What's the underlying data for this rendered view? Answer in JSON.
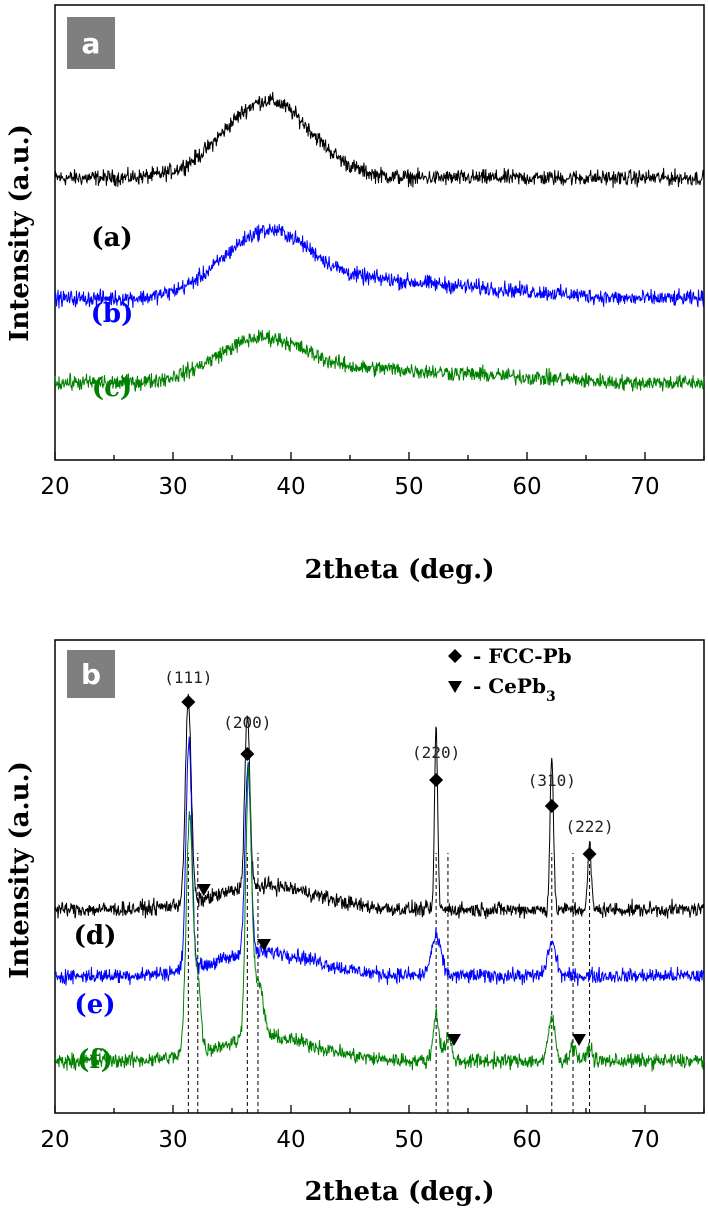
{
  "chart_data": [
    {
      "panel": "a",
      "type": "line",
      "xlabel": "2theta (deg.)",
      "ylabel": "Intensity (a.u.)",
      "xlim": [
        20,
        75
      ],
      "xticks": [
        20,
        30,
        40,
        50,
        60,
        70
      ],
      "series": [
        {
          "name": "(a)",
          "color": "#000000",
          "baseline": 0.62,
          "hump_center": 38,
          "hump_height": 0.17,
          "hump_width": 5.2,
          "tail": 0.0
        },
        {
          "name": "(b)",
          "color": "#0000ff",
          "baseline": 0.355,
          "hump_center": 38,
          "hump_height": 0.13,
          "hump_width": 5.2,
          "tail": 0.04
        },
        {
          "name": "(c)",
          "color": "#008000",
          "baseline": 0.17,
          "hump_center": 37.5,
          "hump_height": 0.085,
          "hump_width": 5.2,
          "tail": 0.03
        }
      ]
    },
    {
      "panel": "b",
      "type": "line",
      "xlabel": "2theta (deg.)",
      "ylabel": "Intensity (a.u.)",
      "xlim": [
        20,
        75
      ],
      "xticks": [
        20,
        30,
        40,
        50,
        60,
        70
      ],
      "legend": [
        {
          "marker": "diamond",
          "label": "- FCC-Pb"
        },
        {
          "marker": "triangle-down",
          "label": "- CePb",
          "label_sub": "3"
        }
      ],
      "peak_labels": [
        {
          "label": "(111)",
          "x": 31.3
        },
        {
          "label": "(200)",
          "x": 36.3
        },
        {
          "label": "(220)",
          "x": 52.3
        },
        {
          "label": "(310)",
          "x": 62.1
        },
        {
          "label": "(222)",
          "x": 65.3
        }
      ],
      "fcc_pb_peaks": [
        31.3,
        36.3,
        52.3,
        62.1,
        65.3
      ],
      "cepb3_peaks": [
        32.1,
        37.2,
        53.3,
        63.9
      ],
      "series": [
        {
          "name": "(d)",
          "color": "#000000",
          "baseline": 0.43,
          "peaks": [
            [
              31.3,
              0.43,
              0.35
            ],
            [
              36.3,
              0.37,
              0.3
            ],
            [
              52.3,
              0.39,
              0.18
            ],
            [
              62.1,
              0.33,
              0.2
            ],
            [
              65.3,
              0.14,
              0.2
            ]
          ]
        },
        {
          "name": "(e)",
          "color": "#0000ff",
          "baseline": 0.29,
          "peaks": [
            [
              31.35,
              0.48,
              0.35
            ],
            [
              36.35,
              0.4,
              0.35
            ],
            [
              52.3,
              0.08,
              0.6
            ],
            [
              62.1,
              0.07,
              0.5
            ]
          ]
        },
        {
          "name": "(f)",
          "color": "#008000",
          "baseline": 0.11,
          "peaks": [
            [
              31.4,
              0.5,
              0.4
            ],
            [
              32.1,
              0.15,
              0.35
            ],
            [
              36.4,
              0.55,
              0.35
            ],
            [
              37.2,
              0.12,
              0.6
            ],
            [
              52.3,
              0.1,
              0.35
            ],
            [
              53.3,
              0.05,
              0.4
            ],
            [
              62.1,
              0.09,
              0.4
            ],
            [
              63.9,
              0.03,
              0.4
            ],
            [
              65.3,
              0.03,
              0.3
            ]
          ]
        }
      ]
    }
  ]
}
